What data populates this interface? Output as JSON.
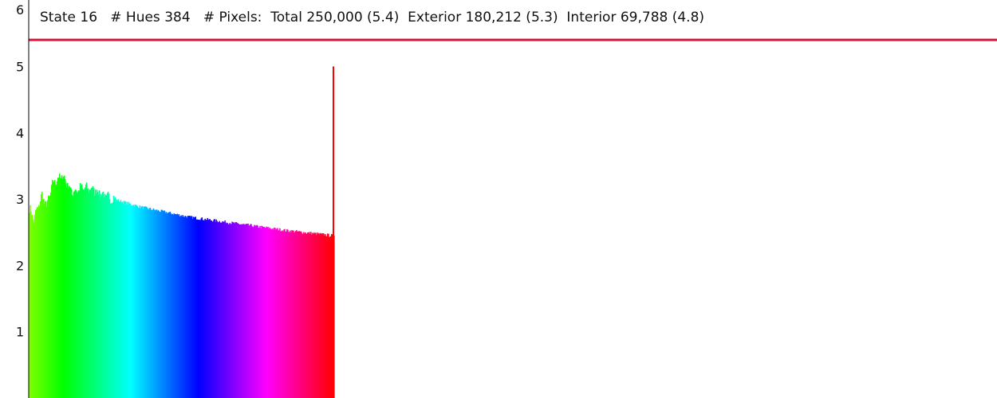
{
  "header": {
    "state_label": "State 16",
    "hues_label": "# Hues 384",
    "pixels_label": "# Pixels:",
    "total_label": "Total 250,000 (5.4)",
    "exterior_label": "Exterior 180,212 (5.3)",
    "interior_label": "Interior 69,788 (4.8)"
  },
  "colors": {
    "reference_line": "#dc143c",
    "spike": "#ff0000",
    "axis": "#000000"
  },
  "chart_data": {
    "type": "bar",
    "description_scale": "log10 pixel count per hue bin",
    "ylim": [
      0,
      6
    ],
    "y_ticks": [
      "1",
      "2",
      "3",
      "4",
      "5",
      "6"
    ],
    "y_tick_values": [
      1,
      2,
      3,
      4,
      5,
      6
    ],
    "reference_line_value": 5.4,
    "bin_count": 384,
    "envelope": [
      {
        "bin": 0,
        "value": 2.85
      },
      {
        "bin": 6,
        "value": 2.7
      },
      {
        "bin": 16,
        "value": 3.05
      },
      {
        "bin": 22,
        "value": 2.9
      },
      {
        "bin": 30,
        "value": 3.25
      },
      {
        "bin": 42,
        "value": 3.35
      },
      {
        "bin": 54,
        "value": 3.1
      },
      {
        "bin": 66,
        "value": 3.17
      },
      {
        "bin": 80,
        "value": 3.15
      },
      {
        "bin": 100,
        "value": 3.02
      },
      {
        "bin": 140,
        "value": 2.88
      },
      {
        "bin": 200,
        "value": 2.73
      },
      {
        "bin": 260,
        "value": 2.63
      },
      {
        "bin": 320,
        "value": 2.53
      },
      {
        "bin": 380,
        "value": 2.45
      }
    ],
    "spike": {
      "bin": 383,
      "value": 5.0
    },
    "hue_start_deg": 90,
    "hue_end_deg": 360
  }
}
